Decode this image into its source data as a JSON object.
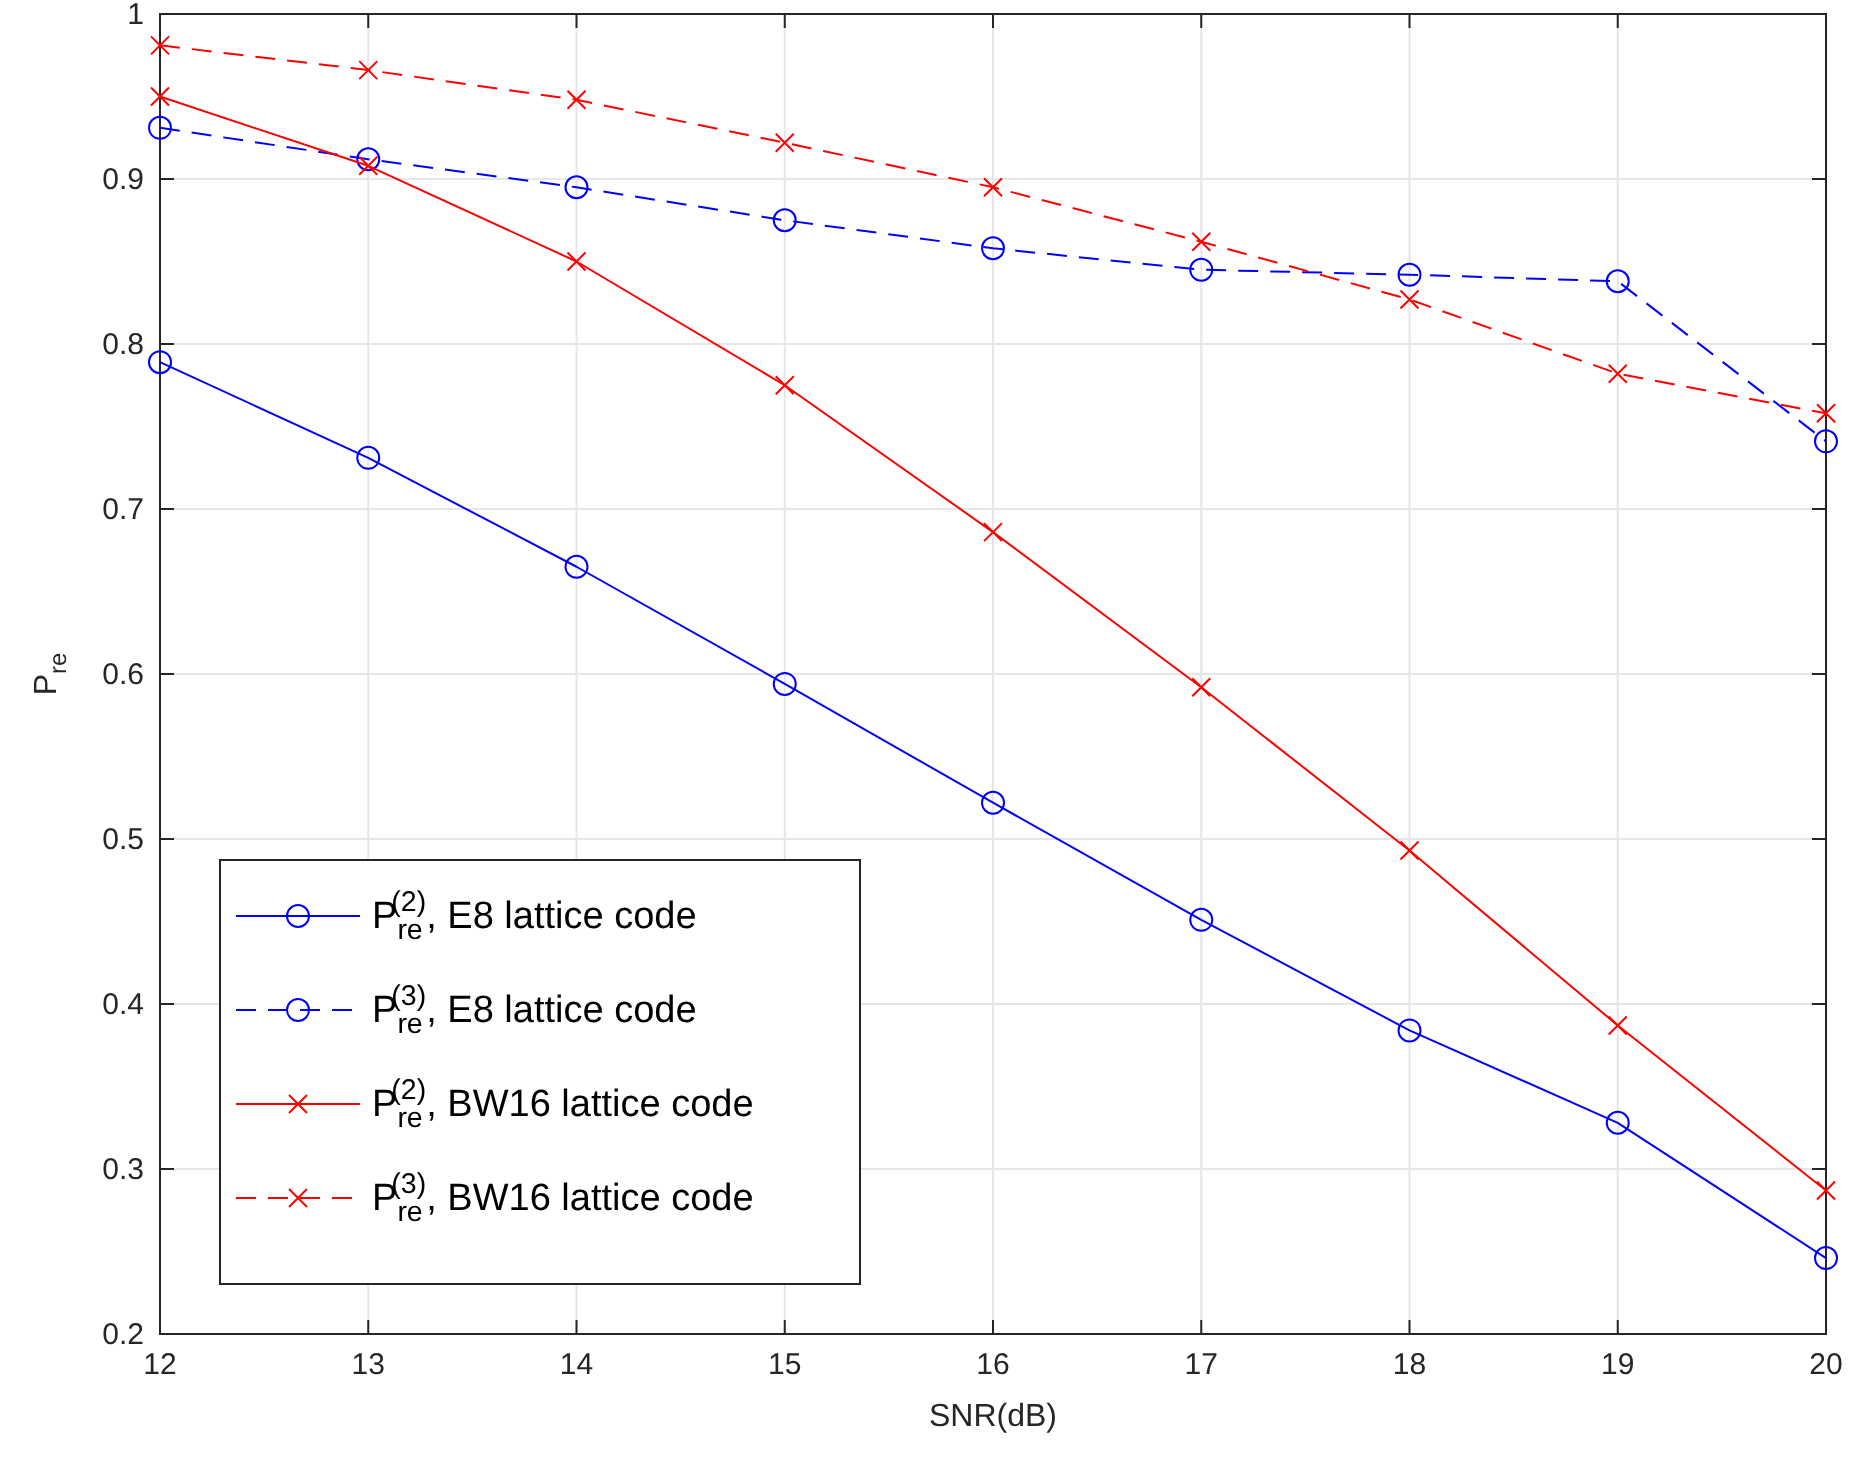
{
  "chart_data": {
    "type": "line",
    "xlabel": "SNR(dB)",
    "ylabel": "P$_{re}$",
    "x": [
      12,
      13,
      14,
      15,
      16,
      17,
      18,
      19,
      20
    ],
    "xlim": [
      12,
      20
    ],
    "xticks": [
      12,
      13,
      14,
      15,
      16,
      17,
      18,
      19,
      20
    ],
    "ylim": [
      0.2,
      1
    ],
    "yticks": [
      0.2,
      0.3,
      0.4,
      0.5,
      0.6,
      0.7,
      0.8,
      0.9,
      1
    ],
    "grid": true,
    "legend": "bottom left",
    "series": [
      {
        "name": "P$_{re}$$^{(2)}$, E8 lattice code",
        "color": "#0000ff",
        "marker": "circle",
        "line_style": "solid",
        "values": [
          0.789,
          0.731,
          0.665,
          0.594,
          0.522,
          0.451,
          0.384,
          0.328,
          0.246
        ]
      },
      {
        "name": "P$_{re}$$^{(3)}$, E8 lattice code",
        "color": "#0000ff",
        "marker": "circle",
        "line_style": "dashed",
        "values": [
          0.931,
          0.912,
          0.895,
          0.875,
          0.858,
          0.845,
          0.842,
          0.838,
          0.741
        ]
      },
      {
        "name": "P$_{re}$$^{(2)}$, BW16 lattice code",
        "color": "#ff0000",
        "marker": "cross",
        "line_style": "solid",
        "values": [
          0.95,
          0.908,
          0.85,
          0.775,
          0.686,
          0.592,
          0.493,
          0.387,
          0.287
        ]
      },
      {
        "name": "P$_{re}$$^{(3)}$, BW16 lattice code",
        "color": "#ff0000",
        "marker": "cross",
        "line_style": "dashed",
        "values": [
          0.981,
          0.966,
          0.948,
          0.922,
          0.895,
          0.862,
          0.827,
          0.782,
          0.758
        ]
      }
    ]
  }
}
